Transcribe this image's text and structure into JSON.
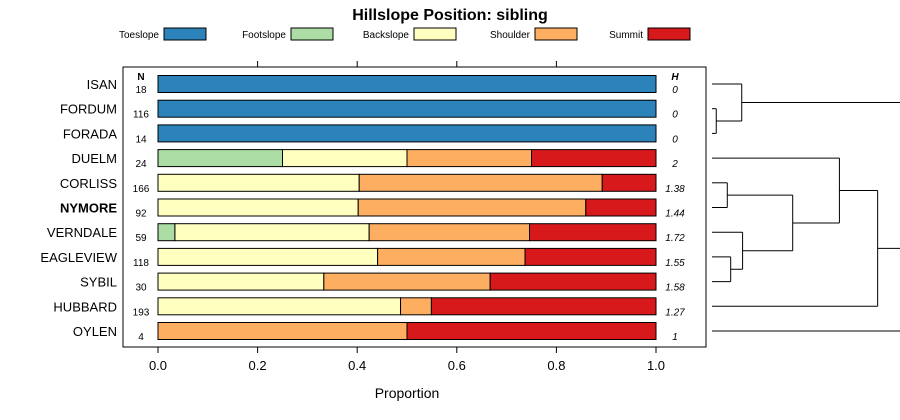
{
  "chart_data": {
    "type": "bar",
    "stacked": true,
    "orientation": "horizontal",
    "title": "Hillslope Position: sibling",
    "xlabel": "Proportion",
    "ylabel": "",
    "xlim": [
      0,
      1
    ],
    "x_ticks": [
      "0.0",
      "0.2",
      "0.4",
      "0.6",
      "0.8",
      "1.0"
    ],
    "x_tick_values": [
      0,
      0.2,
      0.4,
      0.6,
      0.8,
      1.0
    ],
    "n_header": "N",
    "h_header": "H",
    "legend_position": "top",
    "categories": [
      "ISAN",
      "FORDUM",
      "FORADA",
      "DUELM",
      "CORLISS",
      "NYMORE",
      "VERNDALE",
      "EAGLEVIEW",
      "SYBIL",
      "HUBBARD",
      "OYLEN"
    ],
    "highlight": "NYMORE",
    "n": [
      "18",
      "116",
      "14",
      "24",
      "166",
      "92",
      "59",
      "118",
      "30",
      "193",
      "4"
    ],
    "h": [
      "0",
      "0",
      "0",
      "2",
      "1.38",
      "1.44",
      "1.72",
      "1.55",
      "1.58",
      "1.27",
      "1"
    ],
    "series": [
      {
        "name": "Toeslope",
        "color": "#2b83ba",
        "values": [
          1,
          1,
          1,
          0,
          0,
          0,
          0,
          0,
          0,
          0,
          0
        ]
      },
      {
        "name": "Footslope",
        "color": "#abdda4",
        "values": [
          0,
          0,
          0,
          0.25,
          0,
          0,
          0.034,
          0,
          0,
          0,
          0
        ]
      },
      {
        "name": "Backslope",
        "color": "#ffffbf",
        "values": [
          0,
          0,
          0,
          0.25,
          0.404,
          0.402,
          0.39,
          0.441,
          0.333,
          0.487,
          0
        ]
      },
      {
        "name": "Shoulder",
        "color": "#fdae61",
        "values": [
          0,
          0,
          0,
          0.25,
          0.488,
          0.457,
          0.322,
          0.296,
          0.334,
          0.062,
          0.5
        ]
      },
      {
        "name": "Summit",
        "color": "#d7191c",
        "values": [
          0,
          0,
          0,
          0.25,
          0.108,
          0.141,
          0.254,
          0.263,
          0.333,
          0.451,
          0.5
        ]
      }
    ],
    "dendrogram": {
      "order": [
        "ISAN",
        "FORDUM",
        "FORADA",
        "DUELM",
        "CORLISS",
        "NYMORE",
        "VERNDALE",
        "EAGLEVIEW",
        "SYBIL",
        "HUBBARD",
        "OYLEN"
      ],
      "merges": [
        {
          "left": 1,
          "right": 2,
          "height": 0.005
        },
        {
          "left": 0,
          "right": -1,
          "height": 0.035
        },
        {
          "left": 4,
          "right": 5,
          "height": 0.018
        },
        {
          "left": 7,
          "right": 8,
          "height": 0.022
        },
        {
          "left": 6,
          "right": -4,
          "height": 0.036
        },
        {
          "left": -3,
          "right": -5,
          "height": 0.095
        },
        {
          "left": 3,
          "right": -6,
          "height": 0.15
        },
        {
          "left": 9,
          "right": -7,
          "height": 0.195
        },
        {
          "left": 10,
          "right": -8,
          "height": 0.245
        },
        {
          "left": -2,
          "right": -9,
          "height": 0.465
        }
      ]
    }
  }
}
